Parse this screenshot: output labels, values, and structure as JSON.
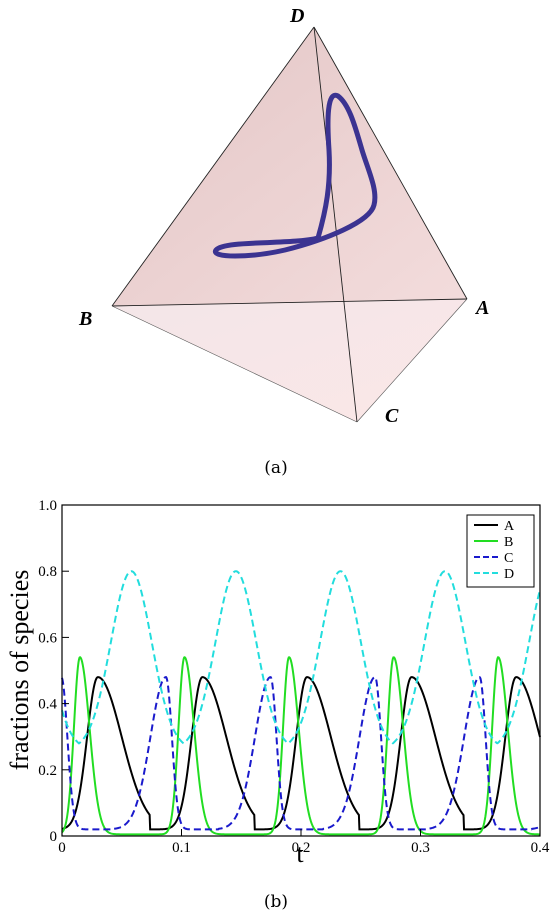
{
  "panel_a": {
    "vertex_labels": {
      "A": "A",
      "B": "B",
      "C": "C",
      "D": "D"
    },
    "caption": "(a)",
    "orbit_color": "#3b3391",
    "face_color": "#e8cccc"
  },
  "panel_b": {
    "caption": "(b)"
  },
  "chart_data": {
    "type": "line",
    "title": "",
    "xlabel": "t",
    "ylabel": "fractions of species",
    "xlim": [
      0,
      0.4
    ],
    "ylim": [
      0,
      1.0
    ],
    "xticks": [
      "0",
      "0.1",
      "0.2",
      "0.3",
      "0.4"
    ],
    "yticks": [
      "0",
      "0.2",
      "0.4",
      "0.6",
      "0.8",
      "1.0"
    ],
    "grid": false,
    "legend_position": "top-right",
    "period": 0.0875,
    "series": [
      {
        "name": "A",
        "color": "#000000",
        "dash": "solid",
        "peak_t": 0.03,
        "max": 0.48,
        "min": 0.02,
        "rise_width": 0.009,
        "fall_width": 0.02
      },
      {
        "name": "B",
        "color": "#22dd22",
        "dash": "solid",
        "peak_t": 0.015,
        "max": 0.54,
        "min": 0.005,
        "rise_width": 0.005,
        "fall_width": 0.008
      },
      {
        "name": "C",
        "color": "#1a1acc",
        "dash": "dashed",
        "peak_t": 0.087,
        "max": 0.48,
        "min": 0.02,
        "rise_width": 0.013,
        "fall_width": 0.005
      },
      {
        "name": "D",
        "color": "#22dddd",
        "dash": "dashed",
        "peak_t": 0.058,
        "max": 0.8,
        "min": 0.26,
        "rise_width": 0.017,
        "fall_width": 0.017
      }
    ]
  }
}
